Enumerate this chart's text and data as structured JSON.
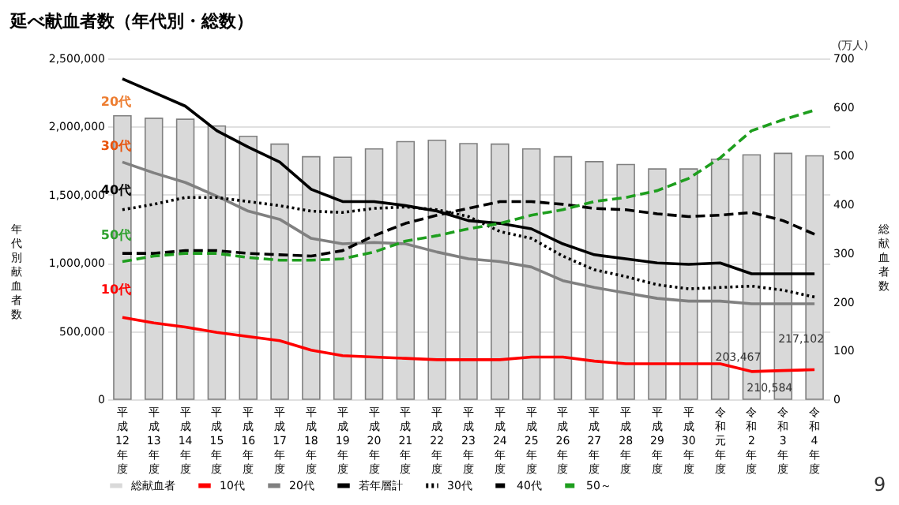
{
  "chart_data": {
    "type": "line",
    "title": "延べ献血者数（年代別・総数）",
    "categories": [
      "平成12年度",
      "平成13年度",
      "平成14年度",
      "平成15年度",
      "平成16年度",
      "平成17年度",
      "平成18年度",
      "平成19年度",
      "平成20年度",
      "平成21年度",
      "平成22年度",
      "平成23年度",
      "平成24年度",
      "平成25年度",
      "平成26年度",
      "平成27年度",
      "平成28年度",
      "平成29年度",
      "平成30年度",
      "令和元年度",
      "令和2年度",
      "令和3年度",
      "令和4年度"
    ],
    "ylabel": "年代別献血者数",
    "y2label": "総献血者数",
    "ylim": [
      0,
      2500000
    ],
    "yticks": [
      0,
      {
        "value": 500000,
        "label": "500,000"
      },
      {
        "value": 1000000,
        "label": "1,000,000"
      },
      {
        "value": 1500000,
        "label": "1,500,000"
      },
      {
        "value": 2000000,
        "label": "2,000,000"
      },
      {
        "value": 2500000,
        "label": "2,500,000"
      }
    ],
    "y2lim": [
      0,
      700
    ],
    "y2ticks": [
      0,
      100,
      200,
      300,
      400,
      500,
      600,
      700
    ],
    "grid": "y",
    "legend": "bottom",
    "series": [
      {
        "name": "総献血者",
        "type": "bar",
        "axis": "y2",
        "color": "#d9d9d9",
        "values": [
          582,
          577,
          575,
          561,
          540,
          524,
          498,
          497,
          514,
          529,
          532,
          525,
          524,
          514,
          498,
          488,
          482,
          473,
          473,
          493,
          502,
          505,
          500
        ]
      },
      {
        "name": "10代",
        "color": "#ff0000",
        "line_style": "solid",
        "values": [
          600000,
          560000,
          530000,
          490000,
          460000,
          430000,
          360000,
          320000,
          310000,
          300000,
          290000,
          290000,
          290000,
          310000,
          310000,
          280000,
          260000,
          260000,
          260000,
          260000,
          203467,
          210584,
          217102
        ],
        "value_labels": [
          null,
          null,
          null,
          null,
          null,
          null,
          null,
          null,
          null,
          null,
          null,
          null,
          null,
          null,
          null,
          null,
          null,
          null,
          null,
          null,
          "203,467",
          "210,584",
          "217,102"
        ]
      },
      {
        "name": "20代",
        "color": "#808080",
        "line_style": "solid",
        "values": [
          1740000,
          1660000,
          1590000,
          1490000,
          1380000,
          1320000,
          1180000,
          1140000,
          1150000,
          1140000,
          1080000,
          1030000,
          1010000,
          970000,
          870000,
          820000,
          780000,
          740000,
          720000,
          720000,
          700000,
          700000,
          700000
        ]
      },
      {
        "name": "若年層計",
        "color": "#000000",
        "line_style": "solid",
        "values": [
          2350000,
          2250000,
          2150000,
          1970000,
          1850000,
          1740000,
          1540000,
          1450000,
          1450000,
          1420000,
          1380000,
          1310000,
          1290000,
          1250000,
          1140000,
          1060000,
          1030000,
          1000000,
          990000,
          1000000,
          920000,
          920000,
          920000
        ]
      },
      {
        "name": "30代",
        "color": "#000000",
        "line_style": "dotted",
        "values": [
          1390000,
          1430000,
          1480000,
          1480000,
          1450000,
          1420000,
          1380000,
          1370000,
          1400000,
          1410000,
          1390000,
          1340000,
          1230000,
          1180000,
          1050000,
          950000,
          900000,
          840000,
          810000,
          820000,
          830000,
          800000,
          750000
        ]
      },
      {
        "name": "40代",
        "color": "#000000",
        "line_style": "dashed",
        "values": [
          1070000,
          1070000,
          1090000,
          1090000,
          1070000,
          1060000,
          1050000,
          1090000,
          1200000,
          1290000,
          1350000,
          1400000,
          1450000,
          1450000,
          1430000,
          1400000,
          1390000,
          1360000,
          1340000,
          1350000,
          1370000,
          1310000,
          1210000
        ]
      },
      {
        "name": "50～",
        "color": "#1e9e1e",
        "line_style": "dashed",
        "values": [
          1010000,
          1050000,
          1070000,
          1070000,
          1040000,
          1020000,
          1020000,
          1030000,
          1080000,
          1160000,
          1200000,
          1250000,
          1290000,
          1350000,
          1390000,
          1450000,
          1480000,
          1530000,
          1620000,
          1770000,
          1970000,
          2050000,
          2120000
        ]
      }
    ],
    "annotations": [
      "20代",
      "30代",
      "40代",
      "50代",
      "10代",
      "(万人)",
      "9"
    ]
  }
}
